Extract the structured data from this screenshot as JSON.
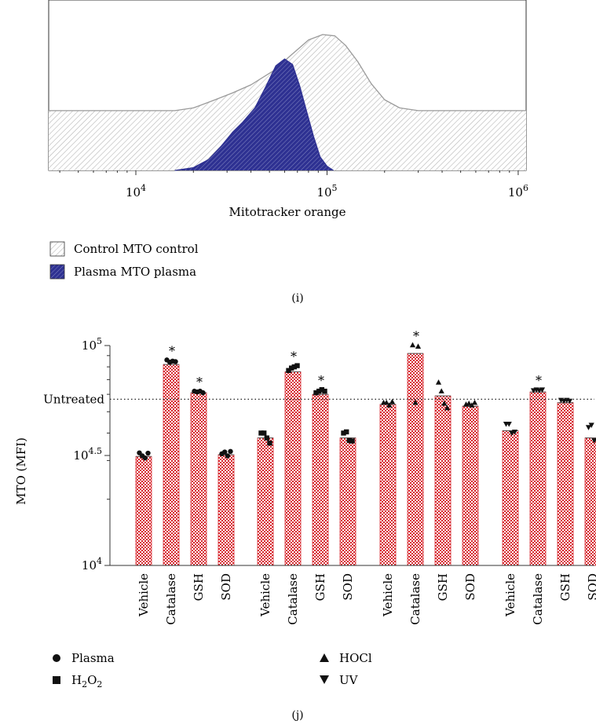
{
  "chart_data": [
    {
      "panel_label": "(i)",
      "type": "area",
      "xlabel": "Mitotracker orange",
      "x_scale": "log",
      "xlim": [
        3500,
        1100000
      ],
      "x_ticks": [
        {
          "value": 10000,
          "base": "10",
          "exp": "4"
        },
        {
          "value": 100000,
          "base": "10",
          "exp": "5"
        },
        {
          "value": 1000000,
          "base": "10",
          "exp": "6"
        }
      ],
      "legend": {
        "placement": "below",
        "entries": [
          {
            "label": "Control MTO control",
            "fill": "hatched-light"
          },
          {
            "label": "Plasma MTO plasma",
            "fill": "hatched-navy"
          }
        ]
      },
      "series": [
        {
          "name": "Control MTO control",
          "color": "#9a9a9a",
          "points": [
            [
              3500,
              0.44
            ],
            [
              10000,
              0.44
            ],
            [
              16000,
              0.44
            ],
            [
              20000,
              0.46
            ],
            [
              26000,
              0.52
            ],
            [
              32000,
              0.57
            ],
            [
              40000,
              0.63
            ],
            [
              52000,
              0.73
            ],
            [
              65000,
              0.85
            ],
            [
              80000,
              0.96
            ],
            [
              95000,
              1.0
            ],
            [
              110000,
              0.99
            ],
            [
              125000,
              0.92
            ],
            [
              145000,
              0.8
            ],
            [
              170000,
              0.64
            ],
            [
              200000,
              0.52
            ],
            [
              240000,
              0.46
            ],
            [
              300000,
              0.44
            ],
            [
              1100000,
              0.44
            ]
          ]
        },
        {
          "name": "Plasma MTO plasma",
          "color": "#2e3192",
          "points": [
            [
              16000,
              0.0
            ],
            [
              20000,
              0.02
            ],
            [
              24000,
              0.08
            ],
            [
              28000,
              0.18
            ],
            [
              32000,
              0.28
            ],
            [
              36000,
              0.35
            ],
            [
              42000,
              0.46
            ],
            [
              48000,
              0.62
            ],
            [
              54000,
              0.77
            ],
            [
              60000,
              0.82
            ],
            [
              66000,
              0.78
            ],
            [
              72000,
              0.62
            ],
            [
              78000,
              0.44
            ],
            [
              85000,
              0.25
            ],
            [
              92000,
              0.1
            ],
            [
              100000,
              0.03
            ],
            [
              108000,
              0.0
            ]
          ]
        }
      ]
    },
    {
      "panel_label": "(j)",
      "type": "bar",
      "ylabel": "MTO (MFI)",
      "y_scale": "log",
      "ylim": [
        10000,
        100000
      ],
      "y_ticks": [
        {
          "value": 10000,
          "base": "10",
          "exp": "4"
        },
        {
          "value": 31623,
          "base": "10",
          "exp": "4.5"
        },
        {
          "value": 100000,
          "base": "10",
          "exp": "5"
        }
      ],
      "reference_line": {
        "label": "Untreated",
        "value": 57000,
        "style": "dotted"
      },
      "bar_fill": "#d7282f",
      "groups": [
        {
          "treatment": "Plasma",
          "marker": "circle",
          "bars": [
            {
              "category": "Vehicle",
              "value": 31300,
              "points": [
                32500,
                31500,
                30800,
                32400
              ],
              "star": false
            },
            {
              "category": "Catalase",
              "value": 82000,
              "points": [
                86000,
                84000,
                85000,
                84500
              ],
              "star": true
            },
            {
              "category": "GSH",
              "value": 61000,
              "points": [
                62000,
                61500,
                62000,
                61000
              ],
              "star": true
            },
            {
              "category": "SOD",
              "value": 31900,
              "points": [
                32200,
                32800,
                31500,
                33000
              ],
              "star": false
            }
          ]
        },
        {
          "treatment": "H2O2",
          "marker": "square",
          "bars": [
            {
              "category": "Vehicle",
              "value": 38000,
              "points": [
                40000,
                40000,
                38000,
                36000
              ],
              "star": false
            },
            {
              "category": "Catalase",
              "value": 76000,
              "points": [
                77000,
                79000,
                80000,
                81000
              ],
              "star": true
            },
            {
              "category": "GSH",
              "value": 60000,
              "points": [
                61000,
                62000,
                63000,
                62000
              ],
              "star": true
            },
            {
              "category": "SOD",
              "value": 38000,
              "points": [
                40000,
                40500,
                37000,
                36800
              ],
              "star": false
            }
          ]
        },
        {
          "treatment": "HOCl",
          "marker": "triangle-up",
          "bars": [
            {
              "category": "Vehicle",
              "value": 54000,
              "points": [
                55000,
                55000,
                53500,
                55500
              ],
              "star": false
            },
            {
              "category": "Catalase",
              "value": 92000,
              "points": [
                100500,
                99000,
                55000
              ],
              "star": true
            },
            {
              "category": "GSH",
              "value": 59000,
              "points": [
                68000,
                62000,
                54500,
                52000
              ],
              "star": false
            },
            {
              "category": "SOD",
              "value": 53000,
              "points": [
                54000,
                54500,
                53500,
                55000
              ],
              "star": false
            }
          ]
        },
        {
          "treatment": "UV",
          "marker": "triangle-down",
          "bars": [
            {
              "category": "Vehicle",
              "value": 41000,
              "points": [
                44000,
                44000,
                40000,
                40500
              ],
              "star": false
            },
            {
              "category": "Catalase",
              "value": 61500,
              "points": [
                62500,
                63000,
                62500,
                63000
              ],
              "star": true
            },
            {
              "category": "GSH",
              "value": 55000,
              "points": [
                56500,
                56000,
                56500,
                56000
              ],
              "star": false
            },
            {
              "category": "SOD",
              "value": 38000,
              "points": [
                42500,
                43500,
                37000,
                37000
              ],
              "star": false
            }
          ]
        }
      ],
      "legend": {
        "placement": "bottom-left",
        "entries": [
          {
            "label": "Plasma",
            "marker": "circle"
          },
          {
            "label": "H2O2",
            "marker": "square",
            "label_parts": {
              "base": "H",
              "sub": "2",
              "mid": "O",
              "sub2": "2"
            }
          },
          {
            "label": "HOCl",
            "marker": "triangle-up"
          },
          {
            "label": "UV",
            "marker": "triangle-down"
          }
        ]
      }
    }
  ],
  "star_symbol": "*",
  "panel_i_label": "(i)",
  "panel_j_label": "(j)"
}
